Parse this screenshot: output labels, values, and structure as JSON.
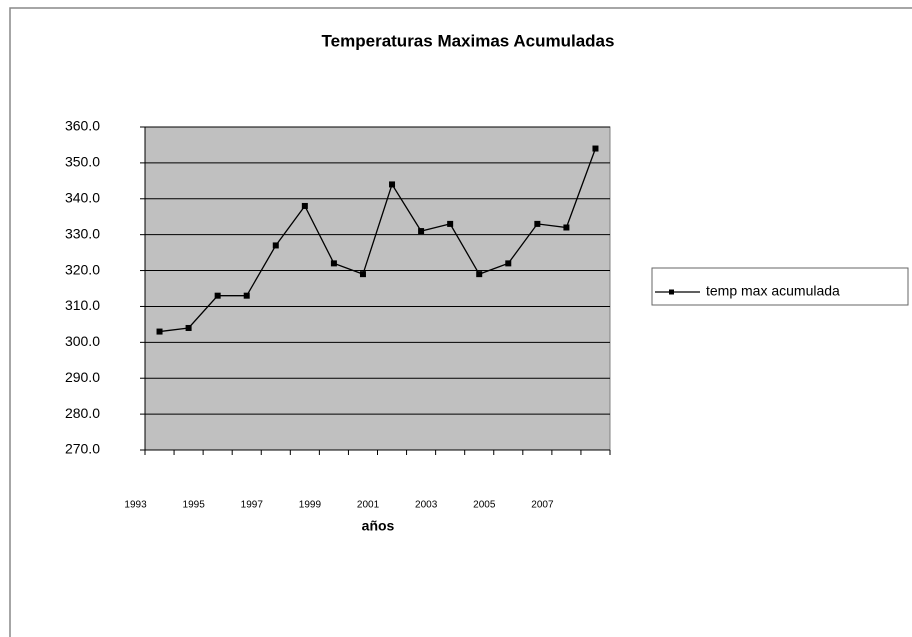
{
  "chart_data": {
    "type": "line",
    "title": "Temperaturas Maximas Acumuladas",
    "x_label": "años",
    "categories": [
      "1993",
      null,
      "1995",
      null,
      "1997",
      null,
      "1999",
      null,
      "2001",
      null,
      "2003",
      null,
      "2005",
      null,
      "2007",
      null
    ],
    "series": [
      {
        "name": "temp max acumulada",
        "color": "#000000",
        "values": [
          303,
          304,
          313,
          313,
          327,
          338,
          322,
          319,
          344,
          331,
          333,
          319,
          322,
          333,
          332,
          354
        ]
      }
    ],
    "ylim": [
      270,
      360
    ],
    "yticks": [
      {
        "value": 270,
        "label": "270.0"
      },
      {
        "value": 280,
        "label": "280.0"
      },
      {
        "value": 290,
        "label": "290.0"
      },
      {
        "value": 300,
        "label": "300.0"
      },
      {
        "value": 310,
        "label": "310.0"
      },
      {
        "value": 320,
        "label": "320.0"
      },
      {
        "value": 330,
        "label": "330.0"
      },
      {
        "value": 340,
        "label": "340.0"
      },
      {
        "value": 350,
        "label": "350.0"
      },
      {
        "value": 360,
        "label": "360.0"
      }
    ],
    "grid": true,
    "legend": "right"
  }
}
